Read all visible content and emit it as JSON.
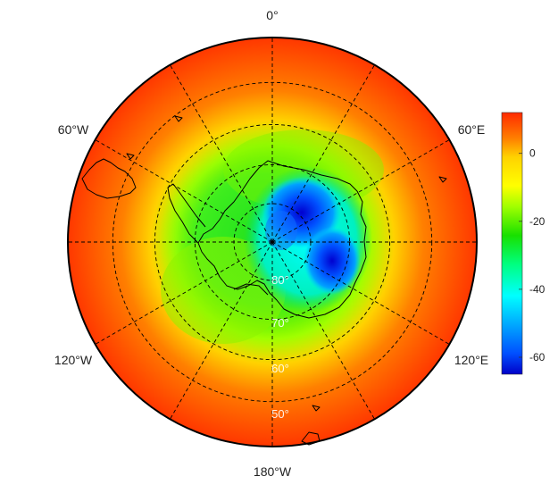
{
  "map": {
    "projection": "south-polar-stereographic",
    "colormap": "rainbow",
    "grid": true,
    "longitude_labels": {
      "top": "0°",
      "right_top": "60°E",
      "right_bottom": "120°E",
      "bottom": "180°W",
      "left_bottom": "120°W",
      "left_top": "60°W"
    },
    "latitude_labels": [
      "50°",
      "60°",
      "70°",
      "80°"
    ],
    "meridians_deg": [
      0,
      30,
      60,
      90,
      120,
      150,
      180,
      210,
      240,
      270,
      300,
      330
    ],
    "parallels_deg": [
      -50,
      -60,
      -70,
      -80
    ]
  },
  "colorbar": {
    "vmin": -65,
    "vmax": 12,
    "ticks": [
      "0",
      "-20",
      "-40",
      "-60"
    ],
    "colors": [
      "#ff2a00",
      "#ff8000",
      "#ffd200",
      "#ffff00",
      "#a0ff00",
      "#18e000",
      "#00ff80",
      "#00ffff",
      "#00a0ff",
      "#0050ff",
      "#0000c8"
    ]
  }
}
